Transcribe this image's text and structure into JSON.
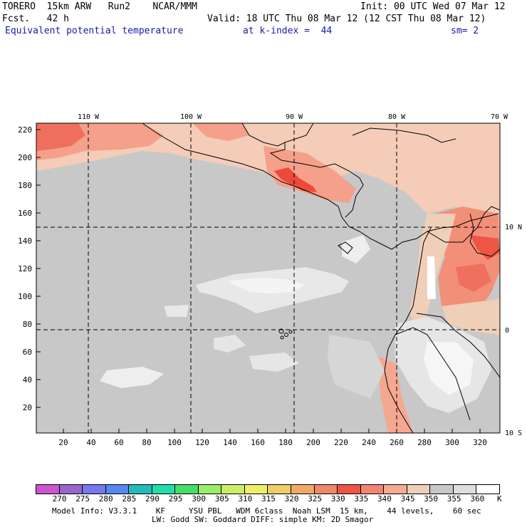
{
  "header": {
    "line1_left": "TORERO  15km ARW   Run2    NCAR/MMM",
    "line1_right": "Init: 00 UTC Wed 07 Mar 12",
    "line2_left": "Fcst.   42 h",
    "line2_right": "Valid: 18 UTC Thu 08 Mar 12 (12 CST Thu 08 Mar 12)",
    "line3_title": "Equivalent potential temperature",
    "line3_level": "at k-index =  44",
    "line3_sm": "sm= 2"
  },
  "map": {
    "lon_labels": [
      "110 W",
      "100 W",
      "90 W",
      "80 W",
      "70 W"
    ],
    "lat_labels": [
      "10 N",
      "0",
      "10 S"
    ],
    "y_ticks": [
      "220",
      "200",
      "180",
      "160",
      "140",
      "120",
      "100",
      "80",
      "60",
      "40",
      "20"
    ],
    "x_ticks": [
      "20",
      "40",
      "60",
      "80",
      "100",
      "120",
      "140",
      "160",
      "180",
      "200",
      "220",
      "240",
      "260",
      "280",
      "300",
      "320"
    ]
  },
  "legend": {
    "labels": [
      "270",
      "275",
      "280",
      "285",
      "290",
      "295",
      "300",
      "305",
      "310",
      "315",
      "320",
      "325",
      "330",
      "335",
      "340",
      "345",
      "350",
      "355",
      "360"
    ],
    "unit": "K",
    "colors": [
      "#cc55cc",
      "#9966cc",
      "#7777ee",
      "#5588ee",
      "#22bbbb",
      "#22ddaa",
      "#44dd66",
      "#99ee66",
      "#ccee66",
      "#eeee66",
      "#eecc66",
      "#f0aa66",
      "#ee8866",
      "#ee5544",
      "#f28570",
      "#f4ab92",
      "#f0cfb8",
      "#c8c8c8",
      "#dddddd",
      "#ffffff"
    ]
  },
  "footer": {
    "line1": "Model Info: V3.3.1    KF     YSU PBL   WDM 6class  Noah LSM  15 km,    44 levels,    60 sec",
    "line2": "LW: Godd SW: Goddard DIFF: simple KM: 2D Smagor"
  }
}
